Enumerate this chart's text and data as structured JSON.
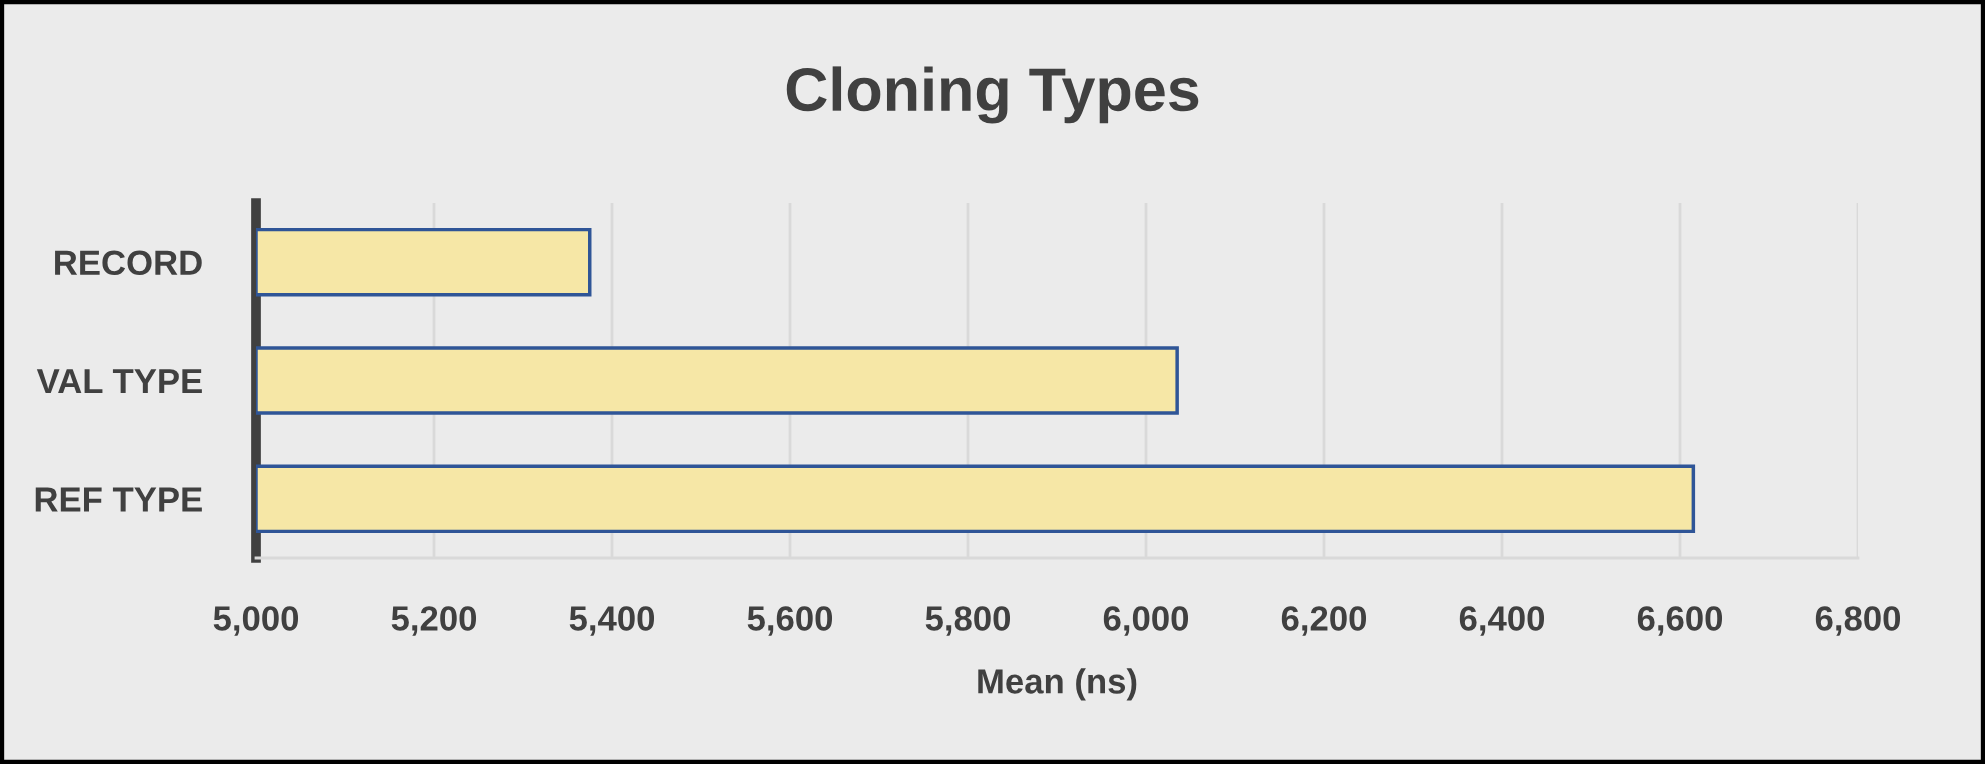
{
  "chart_data": {
    "type": "bar",
    "orientation": "horizontal",
    "title": "Cloning Types",
    "xlabel": "Mean (ns)",
    "categories": [
      "RECORD",
      "VAL TYPE",
      "REF TYPE"
    ],
    "values": [
      5375,
      6035,
      6615
    ],
    "color": "#f6e7a6",
    "xlim": [
      5000,
      6800
    ],
    "xticks": [
      {
        "value": 5000,
        "label": "5,000"
      },
      {
        "value": 5200,
        "label": "5,200"
      },
      {
        "value": 5400,
        "label": "5,400"
      },
      {
        "value": 5600,
        "label": "5,600"
      },
      {
        "value": 5800,
        "label": "5,800"
      },
      {
        "value": 6000,
        "label": "6,000"
      },
      {
        "value": 6200,
        "label": "6,200"
      },
      {
        "value": 6400,
        "label": "6,400"
      },
      {
        "value": 6600,
        "label": "6,600"
      },
      {
        "value": 6800,
        "label": "6,800"
      }
    ],
    "grid": "x"
  }
}
